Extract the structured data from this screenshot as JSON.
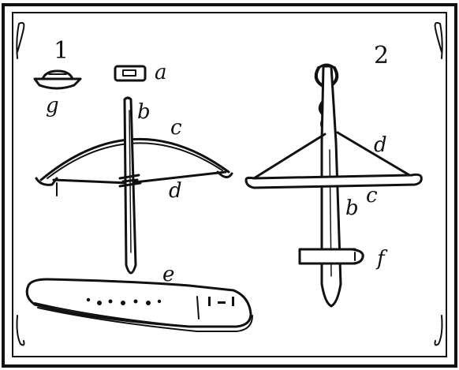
{
  "figure_numbers": {
    "fig1": "1",
    "fig2": "2"
  },
  "labels": {
    "fig1": {
      "a": "a",
      "g": "g",
      "b": "b",
      "c": "c",
      "d": "d",
      "e": "e"
    },
    "fig2": {
      "d": "d",
      "c": "c",
      "b": "b",
      "f": "f"
    }
  },
  "colors": {
    "ink": "#111111",
    "paper": "#ffffff"
  }
}
